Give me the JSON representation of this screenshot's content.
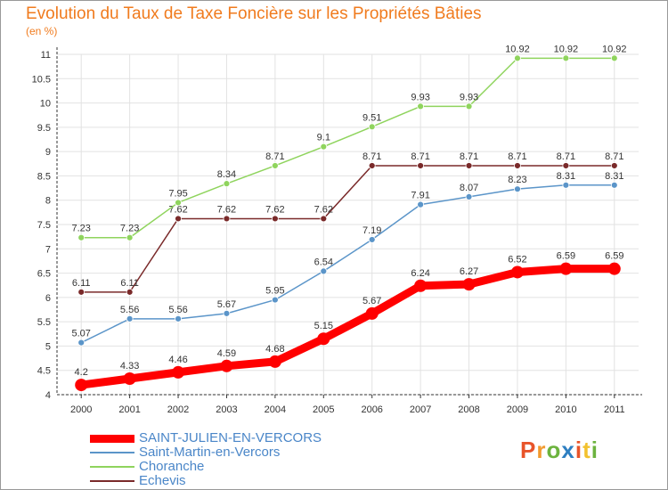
{
  "title": "Evolution du Taux de Taxe Foncière sur les Propriétés Bâties",
  "unit_label": "(en %)",
  "logo": {
    "text": "Proxiti",
    "colors": [
      "#e8542a",
      "#f29a2e",
      "#6cb33e",
      "#2e7fc1",
      "#e8542a",
      "#f2c12e",
      "#6cb33e"
    ]
  },
  "chart_data": {
    "type": "line",
    "title": "Evolution du Taux de Taxe Foncière sur les Propriétés Bâties",
    "ylabel": "(en %)",
    "xlabel": "",
    "x": [
      "2000",
      "2001",
      "2002",
      "2003",
      "2004",
      "2005",
      "2006",
      "2007",
      "2008",
      "2009",
      "2010",
      "2011"
    ],
    "ylim": [
      4,
      11
    ],
    "yticks": [
      "4",
      "4.5",
      "5",
      "5.5",
      "6",
      "6.5",
      "7",
      "7.5",
      "8",
      "8.5",
      "9",
      "9.5",
      "10",
      "10.5",
      "11"
    ],
    "grid": true,
    "legend_position": "bottom-left",
    "series": [
      {
        "name": "SAINT-JULIEN-EN-VERCORS",
        "color": "#ff0000",
        "values": [
          4.2,
          4.33,
          4.46,
          4.59,
          4.68,
          5.15,
          5.67,
          6.24,
          6.27,
          6.52,
          6.59,
          6.59
        ],
        "labels": [
          "4.2",
          "4.33",
          "4.46",
          "4.59",
          "4.68",
          "5.15",
          "5.67",
          "6.24",
          "6.27",
          "6.52",
          "6.59",
          "6.59"
        ]
      },
      {
        "name": "Saint-Martin-en-Vercors",
        "color": "#5b95c9",
        "values": [
          5.07,
          5.56,
          5.56,
          5.67,
          5.95,
          6.54,
          7.19,
          7.91,
          8.07,
          8.23,
          8.31,
          8.31
        ],
        "labels": [
          "5.07",
          "5.56",
          "5.56",
          "5.67",
          "5.95",
          "6.54",
          "7.19",
          "7.91",
          "8.07",
          "8.23",
          "8.31",
          "8.31"
        ]
      },
      {
        "name": "Choranche",
        "color": "#8fd45d",
        "values": [
          7.23,
          7.23,
          7.95,
          8.34,
          8.71,
          9.1,
          9.51,
          9.93,
          9.93,
          10.92,
          10.92,
          10.92
        ],
        "labels": [
          "7.23",
          "7.23",
          "7.95",
          "8.34",
          "8.71",
          "9.1",
          "9.51",
          "9.93",
          "9.93",
          "10.92",
          "10.92",
          "10.92"
        ]
      },
      {
        "name": "Echevis",
        "color": "#7a2a2a",
        "values": [
          6.11,
          6.11,
          7.62,
          7.62,
          7.62,
          7.62,
          8.71,
          8.71,
          8.71,
          8.71,
          8.71,
          8.71
        ],
        "labels": [
          "6.11",
          "6.11",
          "7.62",
          "7.62",
          "7.62",
          "7.62",
          "8.71",
          "8.71",
          "8.71",
          "8.71",
          "8.71",
          "8.71"
        ]
      }
    ]
  }
}
